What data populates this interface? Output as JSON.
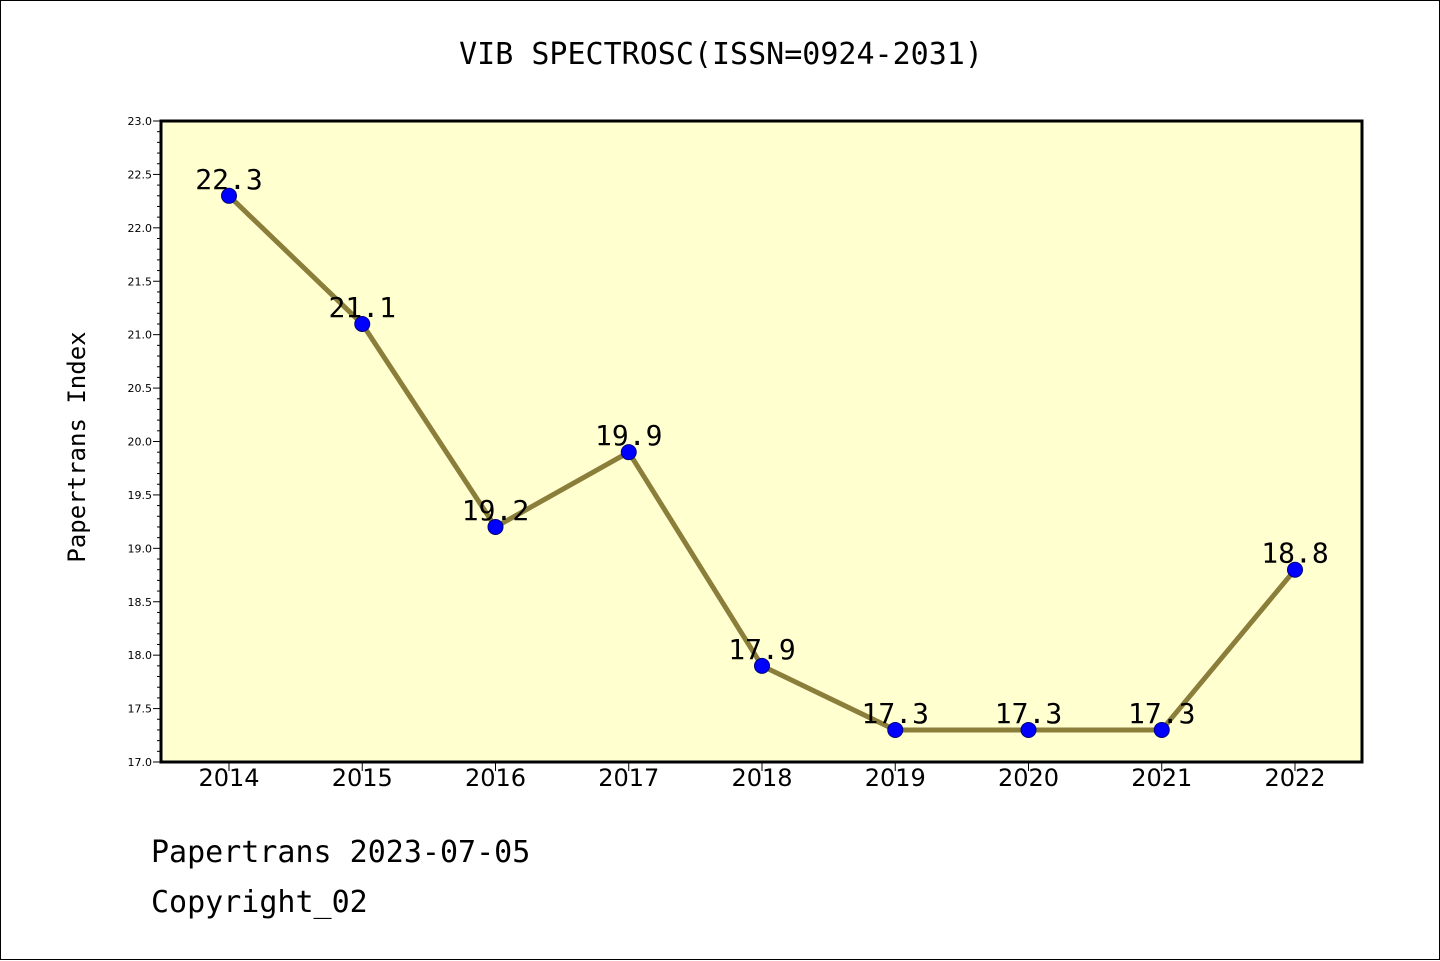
{
  "chart_data": {
    "type": "line",
    "title": "VIB SPECTROSC(ISSN=0924-2031)",
    "xlabel": "",
    "ylabel": "Papertrans Index",
    "categories": [
      "2014",
      "2015",
      "2016",
      "2017",
      "2018",
      "2019",
      "2020",
      "2021",
      "2022"
    ],
    "series": [
      {
        "values": [
          22.3,
          21.1,
          19.2,
          19.9,
          17.9,
          17.3,
          17.3,
          17.3,
          18.8
        ]
      }
    ],
    "data_labels": [
      "22.3",
      "21.1",
      "19.2",
      "19.9",
      "17.9",
      "17.3",
      "17.3",
      "17.3",
      "18.8"
    ],
    "ylim": [
      17.0,
      23.0
    ],
    "yticks": [
      "17.0",
      "17.5",
      "18.0",
      "18.5",
      "19.0",
      "19.5",
      "20.0",
      "20.5",
      "21.0",
      "21.5",
      "22.0",
      "22.5",
      "23.0"
    ],
    "grid": false,
    "legend": "none"
  },
  "footer": {
    "date_line": "Papertrans 2023-07-05",
    "copyright_line": "Copyright_02"
  },
  "colors": {
    "plot_background": "#ffffd0",
    "line": "#8b7d3a",
    "marker_fill": "#0000ff",
    "marker_edge": "#000080",
    "axis": "#000000"
  }
}
